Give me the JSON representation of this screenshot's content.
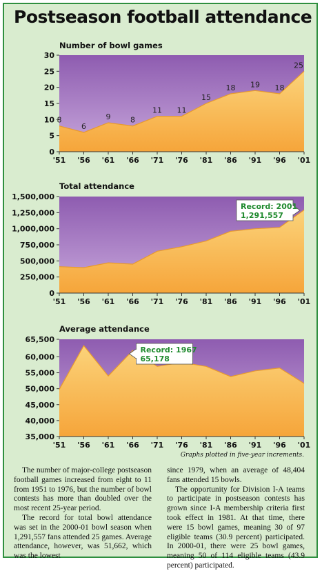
{
  "title": "Postseason football attendance",
  "colors": {
    "panel_bg": "#d9eccf",
    "border": "#2f8f3f",
    "plot_top": "#8e5cb0",
    "plot_bottom": "#c8a8dc",
    "area_top": "#fbd37a",
    "area_bottom": "#f6a53a",
    "callout_text": "#1f8a2e"
  },
  "chart_data": [
    {
      "type": "area",
      "title": "Number of bowl games",
      "x": [
        "'51",
        "'56",
        "'61",
        "'66",
        "'71",
        "'76",
        "'81",
        "'86",
        "'91",
        "'96",
        "'01"
      ],
      "values": [
        8,
        6,
        9,
        8,
        11,
        11,
        15,
        18,
        19,
        18,
        25
      ],
      "data_labels": [
        "8",
        "6",
        "9",
        "8",
        "11",
        "11",
        "15",
        "18",
        "19",
        "18",
        "25"
      ],
      "ylim": [
        0,
        30
      ],
      "yticks": [
        0,
        5,
        10,
        15,
        20,
        25,
        30
      ],
      "ytick_labels": [
        "0",
        "5",
        "10",
        "15",
        "20",
        "25",
        "30"
      ]
    },
    {
      "type": "area",
      "title": "Total attendance",
      "x": [
        "'51",
        "'56",
        "'61",
        "'66",
        "'71",
        "'76",
        "'81",
        "'86",
        "'91",
        "'96",
        "'01"
      ],
      "values": [
        410000,
        395000,
        470000,
        450000,
        650000,
        720000,
        810000,
        960000,
        1000000,
        1020000,
        1291557
      ],
      "ylim": [
        0,
        1500000
      ],
      "yticks": [
        0,
        250000,
        500000,
        750000,
        1000000,
        1250000,
        1500000
      ],
      "ytick_labels": [
        "0",
        "250,000",
        "500,000",
        "750,000",
        "1,000,000",
        "1,250,000",
        "1,500,000"
      ],
      "annotation": {
        "line1": "Record: 2001",
        "line2": "1,291,557",
        "x_index": 10,
        "side": "left"
      }
    },
    {
      "type": "area",
      "title": "Average attendance",
      "x": [
        "'51",
        "'56",
        "'61",
        "'66",
        "'71",
        "'76",
        "'81",
        "'86",
        "'91",
        "'96",
        "'01"
      ],
      "values": [
        49800,
        63500,
        54000,
        62000,
        57000,
        58200,
        57000,
        53800,
        55600,
        56500,
        51662
      ],
      "ylim": [
        35000,
        65500
      ],
      "yticks": [
        35000,
        40000,
        45000,
        50000,
        55000,
        60000,
        65500
      ],
      "ytick_labels": [
        "35,000",
        "40,000",
        "45,000",
        "50,000",
        "55,000",
        "60,000",
        "65,500"
      ],
      "annotation": {
        "line1": "Record: 1967",
        "line2": "65,178",
        "x_index": 3,
        "side": "right"
      },
      "note": "Graphs plotted in five-year increments."
    }
  ],
  "article": {
    "col1": [
      "The number of major-college postseason football games increased from eight to 11 from 1951 to 1976, but the number of bowl contests has more than doubled over the most recent 25-year period.",
      "The record for total bowl attendance was set in the 2000-01 bowl season when 1,291,557 fans attended 25 games. Average attendance, however, was 51,662, which was the lowest"
    ],
    "col2_cont": "since 1979, when an average of 48,404 fans attended 15 bowls.",
    "col2": [
      "The opportunity for Division I-A teams to participate in postseason contests has grown since I-A membership criteria first took effect in 1981. At that time, there were 15 bowl games, meaning 30 of 97 eligible teams (30.9 percent) participated. In 2000-01, there were 25 bowl games, meaning 50 of 114 eligible teams (43.9 percent) participated."
    ]
  }
}
